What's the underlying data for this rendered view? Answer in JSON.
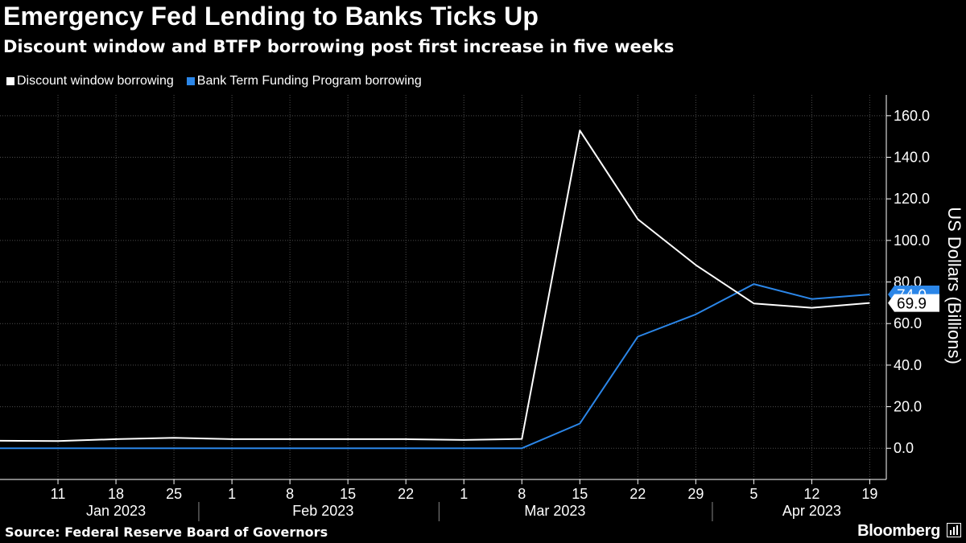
{
  "title": "Emergency Fed Lending to Banks Ticks Up",
  "subtitle": "Discount window and BTFP borrowing post first increase in five weeks",
  "source": "Source: Federal Reserve Board of Governors",
  "brand": "Bloomberg",
  "colors": {
    "background": "#000000",
    "discount": "#ffffff",
    "btfp": "#2b86e8",
    "grid": "#4d4d4d",
    "axis": "#ffffff"
  },
  "chart_data": {
    "type": "line",
    "x": [
      "2023-01-04",
      "2023-01-11",
      "2023-01-18",
      "2023-01-25",
      "2023-02-01",
      "2023-02-08",
      "2023-02-15",
      "2023-02-22",
      "2023-03-01",
      "2023-03-08",
      "2023-03-15",
      "2023-03-22",
      "2023-03-29",
      "2023-04-05",
      "2023-04-12",
      "2023-04-19"
    ],
    "xlim": [
      "2023-01-04",
      "2023-04-21"
    ],
    "x_tick_labels": [
      "11",
      "18",
      "25",
      "1",
      "8",
      "15",
      "22",
      "1",
      "8",
      "15",
      "22",
      "29",
      "5",
      "12",
      "19"
    ],
    "x_tick_dates": [
      "2023-01-11",
      "2023-01-18",
      "2023-01-25",
      "2023-02-01",
      "2023-02-08",
      "2023-02-15",
      "2023-02-22",
      "2023-03-01",
      "2023-03-08",
      "2023-03-15",
      "2023-03-22",
      "2023-03-29",
      "2023-04-05",
      "2023-04-12",
      "2023-04-19"
    ],
    "month_labels": [
      "Jan 2023",
      "Feb 2023",
      "Mar 2023",
      "Apr 2023"
    ],
    "month_label_dates": [
      "2023-01-18",
      "2023-02-12",
      "2023-03-12",
      "2023-04-12"
    ],
    "month_separator_dates": [
      "2023-01-28",
      "2023-02-26",
      "2023-03-31"
    ],
    "ylabel": "US Dollars (Billions)",
    "ylim": [
      -15,
      170
    ],
    "y_ticks": [
      0,
      20,
      40,
      60,
      80,
      100,
      120,
      140,
      160
    ],
    "y_tick_labels": [
      "0.0",
      "20.0",
      "40.0",
      "60.0",
      "80.0",
      "100.0",
      "120.0",
      "140.0",
      "160.0"
    ],
    "grid": true,
    "legend_position": "top-left",
    "series": [
      {
        "name": "Discount window borrowing",
        "color": "#ffffff",
        "values": [
          3.6,
          3.5,
          4.4,
          5.0,
          4.4,
          4.4,
          4.4,
          4.4,
          4.0,
          4.5,
          152.9,
          110.2,
          88.2,
          69.7,
          67.6,
          69.9
        ],
        "last_label": "69.9"
      },
      {
        "name": "Bank Term Funding Program borrowing",
        "color": "#2b86e8",
        "values": [
          0,
          0,
          0,
          0,
          0,
          0,
          0,
          0,
          0,
          0,
          11.9,
          53.7,
          64.4,
          79.0,
          71.8,
          74.0
        ],
        "last_label": "74.0"
      }
    ]
  }
}
